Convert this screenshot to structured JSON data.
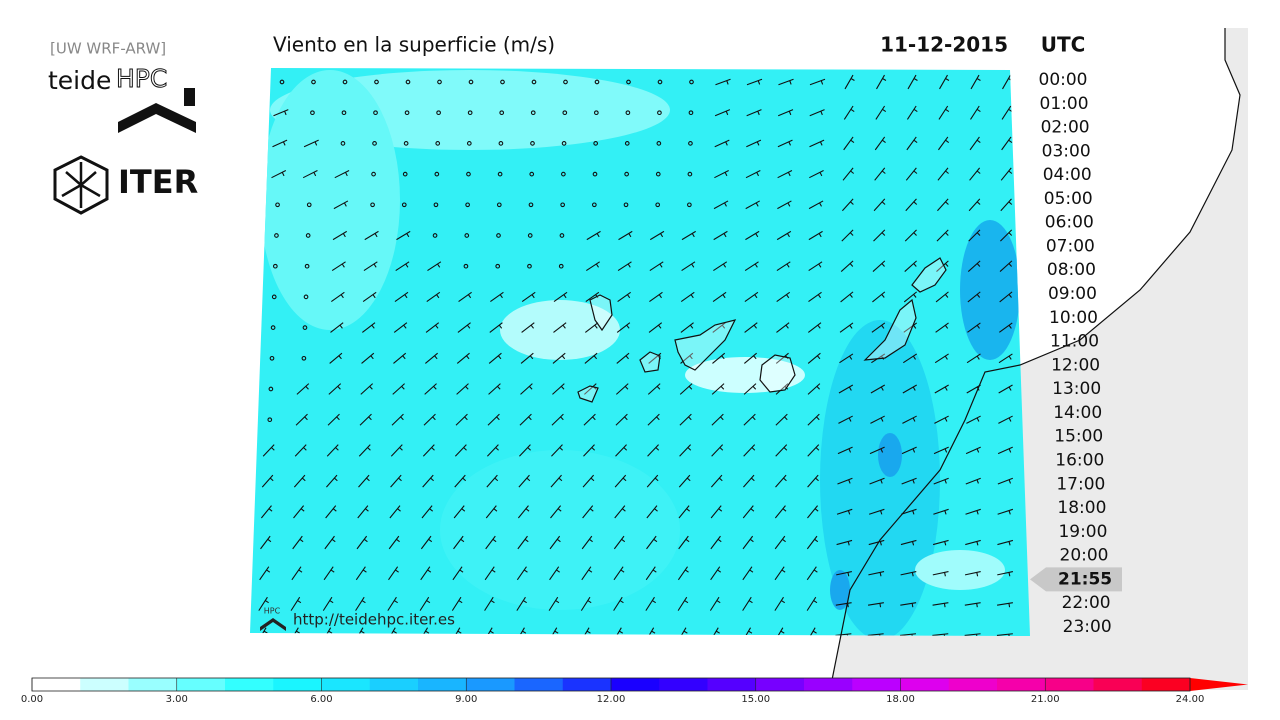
{
  "header": {
    "source": "[UW WRF-ARW]",
    "logo_teide": "teide",
    "logo_hpc": "HPC",
    "logo_iter": "ITER",
    "title": "Viento en la superficie (m/s)",
    "date": "11-12-2015",
    "timezone": "UTC"
  },
  "timeline": {
    "before": [
      "00:00",
      "01:00",
      "02:00",
      "03:00",
      "04:00",
      "05:00",
      "06:00",
      "07:00",
      "08:00",
      "09:00",
      "10:00",
      "11:00",
      "12:00",
      "13:00",
      "14:00",
      "15:00",
      "16:00",
      "17:00",
      "18:00",
      "19:00",
      "20:00"
    ],
    "current": "21:55",
    "after": [
      "22:00",
      "23:00"
    ]
  },
  "footer": {
    "badge": "HPC",
    "url": "http://teidehpc.iter.es"
  },
  "colorbar": {
    "labels": [
      "0.00",
      "3.00",
      "6.00",
      "9.00",
      "12.00",
      "15.00",
      "18.00",
      "21.00",
      "24.00"
    ]
  }
}
